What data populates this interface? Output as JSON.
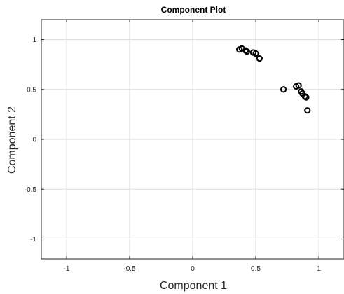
{
  "chart_data": {
    "type": "scatter",
    "title": "Component Plot",
    "xlabel": "Component 1",
    "ylabel": "Component 2",
    "xlim": [
      -1.2,
      1.2
    ],
    "ylim": [
      -1.2,
      1.2
    ],
    "xticks": [
      -1,
      -0.5,
      0,
      0.5,
      1
    ],
    "xtick_labels": [
      "-1",
      "-0.5",
      "0",
      "0.5",
      "1"
    ],
    "yticks": [
      -1,
      -0.5,
      0,
      0.5,
      1
    ],
    "ytick_labels": [
      "-1",
      "-0.5",
      "0",
      "0.5",
      "1"
    ],
    "grid": true,
    "marker": "circle-open",
    "marker_color": "#000000",
    "series": [
      {
        "points": [
          {
            "x": 0.37,
            "y": 0.9
          },
          {
            "x": 0.39,
            "y": 0.91
          },
          {
            "x": 0.42,
            "y": 0.89
          },
          {
            "x": 0.43,
            "y": 0.88
          },
          {
            "x": 0.48,
            "y": 0.87
          },
          {
            "x": 0.5,
            "y": 0.86
          },
          {
            "x": 0.53,
            "y": 0.81
          },
          {
            "x": 0.72,
            "y": 0.5
          },
          {
            "x": 0.82,
            "y": 0.53
          },
          {
            "x": 0.84,
            "y": 0.54
          },
          {
            "x": 0.86,
            "y": 0.48
          },
          {
            "x": 0.87,
            "y": 0.46
          },
          {
            "x": 0.89,
            "y": 0.43
          },
          {
            "x": 0.9,
            "y": 0.42
          },
          {
            "x": 0.91,
            "y": 0.29
          }
        ]
      }
    ]
  }
}
